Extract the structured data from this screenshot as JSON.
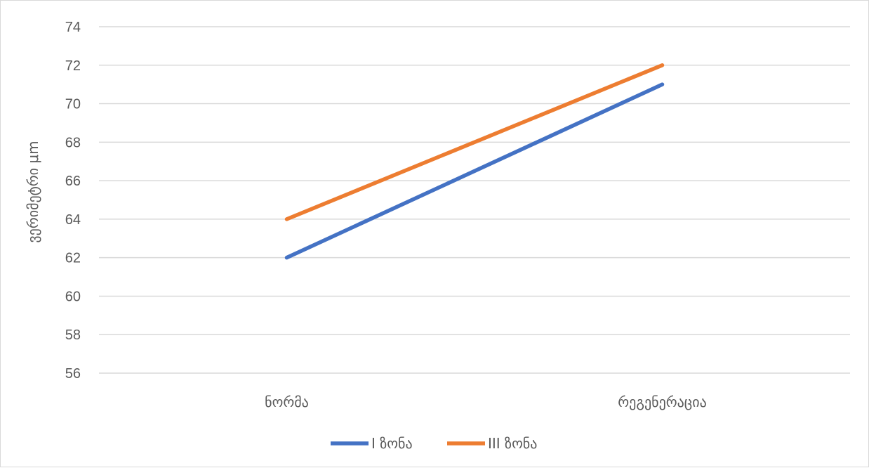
{
  "chart_data": {
    "type": "line",
    "categories": [
      "ნორმა",
      "რეგენერაცია"
    ],
    "series": [
      {
        "name": "I ზონა",
        "values": [
          62,
          71
        ],
        "color": "#4472c4"
      },
      {
        "name": "III ზონა",
        "values": [
          64,
          72
        ],
        "color": "#ed7d31"
      }
    ],
    "ylabel": "ვერიმეტრი μm",
    "xlabel": "",
    "ylim": [
      56,
      74
    ],
    "yticks": [
      56,
      58,
      60,
      62,
      64,
      66,
      68,
      70,
      72,
      74
    ],
    "grid": true,
    "legend": "bottom-center"
  }
}
